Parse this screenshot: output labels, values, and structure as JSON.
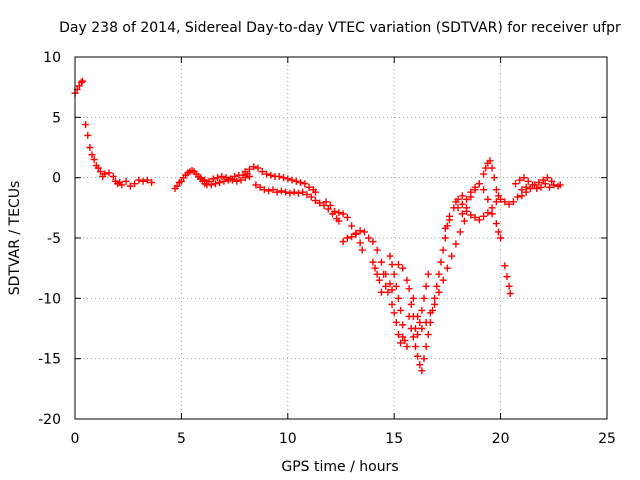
{
  "chart_data": {
    "type": "scatter",
    "title": "Day 238 of 2014, Sidereal Day-to-day VTEC variation (SDTVAR) for receiver ufpr",
    "xlabel": "GPS time / hours",
    "ylabel": "SDTVAR / TECUs",
    "xlim": [
      0,
      25
    ],
    "ylim": [
      -20,
      10
    ],
    "x_ticks": [
      0,
      5,
      10,
      15,
      20,
      25
    ],
    "y_ticks": [
      -20,
      -15,
      -10,
      -5,
      0,
      5,
      10
    ],
    "x_tick_labels": [
      "0",
      "5",
      "10",
      "15",
      "20",
      "25"
    ],
    "y_tick_labels": [
      "-20",
      "-15",
      "-10",
      "-5",
      "0",
      "5",
      "10"
    ],
    "grid": true,
    "marker": "+",
    "marker_color": "#ff0000",
    "series": [
      {
        "name": "SDTVAR",
        "color": "#ff0000",
        "points": [
          [
            0.0,
            7.0
          ],
          [
            0.1,
            7.3
          ],
          [
            0.2,
            7.6
          ],
          [
            0.3,
            7.9
          ],
          [
            0.35,
            8.0
          ],
          [
            0.5,
            4.4
          ],
          [
            0.6,
            3.5
          ],
          [
            0.7,
            2.5
          ],
          [
            0.8,
            1.9
          ],
          [
            0.9,
            1.5
          ],
          [
            1.0,
            1.0
          ],
          [
            1.1,
            0.8
          ],
          [
            1.2,
            0.5
          ],
          [
            1.3,
            0.1
          ],
          [
            1.4,
            0.3
          ],
          [
            1.6,
            0.4
          ],
          [
            1.8,
            0.1
          ],
          [
            1.9,
            -0.3
          ],
          [
            2.0,
            -0.5
          ],
          [
            2.1,
            -0.4
          ],
          [
            2.2,
            -0.6
          ],
          [
            2.4,
            -0.3
          ],
          [
            2.6,
            -0.7
          ],
          [
            2.8,
            -0.5
          ],
          [
            3.0,
            -0.2
          ],
          [
            3.2,
            -0.3
          ],
          [
            3.4,
            -0.2
          ],
          [
            3.6,
            -0.4
          ],
          [
            4.7,
            -0.9
          ],
          [
            4.8,
            -0.7
          ],
          [
            4.9,
            -0.4
          ],
          [
            5.0,
            -0.3
          ],
          [
            5.1,
            0.0
          ],
          [
            5.2,
            0.2
          ],
          [
            5.3,
            0.4
          ],
          [
            5.4,
            0.5
          ],
          [
            5.5,
            0.6
          ],
          [
            5.6,
            0.5
          ],
          [
            5.7,
            0.3
          ],
          [
            5.8,
            0.1
          ],
          [
            5.9,
            -0.1
          ],
          [
            6.0,
            -0.3
          ],
          [
            6.1,
            -0.5
          ],
          [
            6.2,
            -0.6
          ],
          [
            6.4,
            -0.6
          ],
          [
            6.6,
            -0.5
          ],
          [
            6.8,
            -0.4
          ],
          [
            7.0,
            -0.3
          ],
          [
            7.2,
            -0.2
          ],
          [
            7.4,
            -0.2
          ],
          [
            7.6,
            -0.3
          ],
          [
            7.8,
            -0.2
          ],
          [
            8.0,
            0.0
          ],
          [
            8.2,
            0.1
          ],
          [
            5.9,
            0.0
          ],
          [
            6.1,
            -0.2
          ],
          [
            6.3,
            -0.3
          ],
          [
            6.5,
            -0.1
          ],
          [
            6.7,
            0.0
          ],
          [
            6.9,
            0.1
          ],
          [
            7.1,
            0.0
          ],
          [
            7.3,
            -0.1
          ],
          [
            7.5,
            0.1
          ],
          [
            7.7,
            0.2
          ],
          [
            7.9,
            0.2
          ],
          [
            8.1,
            0.3
          ],
          [
            8.0,
            0.5
          ],
          [
            8.2,
            0.7
          ],
          [
            8.4,
            0.9
          ],
          [
            8.6,
            0.8
          ],
          [
            8.8,
            0.5
          ],
          [
            9.0,
            0.3
          ],
          [
            9.2,
            0.2
          ],
          [
            9.4,
            0.1
          ],
          [
            9.6,
            0.1
          ],
          [
            9.8,
            0.0
          ],
          [
            10.0,
            -0.1
          ],
          [
            10.2,
            -0.2
          ],
          [
            10.4,
            -0.3
          ],
          [
            10.6,
            -0.4
          ],
          [
            10.8,
            -0.5
          ],
          [
            11.0,
            -0.8
          ],
          [
            11.2,
            -1.0
          ],
          [
            11.3,
            -1.2
          ],
          [
            8.5,
            -0.6
          ],
          [
            8.7,
            -0.8
          ],
          [
            8.9,
            -1.0
          ],
          [
            9.1,
            -1.1
          ],
          [
            9.3,
            -1.0
          ],
          [
            9.5,
            -1.2
          ],
          [
            9.7,
            -1.1
          ],
          [
            9.9,
            -1.2
          ],
          [
            10.1,
            -1.3
          ],
          [
            10.3,
            -1.2
          ],
          [
            10.5,
            -1.3
          ],
          [
            10.7,
            -1.2
          ],
          [
            10.9,
            -1.4
          ],
          [
            11.1,
            -1.6
          ],
          [
            11.3,
            -1.9
          ],
          [
            11.5,
            -2.1
          ],
          [
            11.7,
            -2.3
          ],
          [
            11.9,
            -2.6
          ],
          [
            12.1,
            -3.0
          ],
          [
            12.3,
            -3.4
          ],
          [
            12.4,
            -3.6
          ],
          [
            11.8,
            -2.0
          ],
          [
            12.0,
            -2.3
          ],
          [
            12.2,
            -2.8
          ],
          [
            12.4,
            -2.9
          ],
          [
            12.6,
            -3.0
          ],
          [
            12.8,
            -3.3
          ],
          [
            13.0,
            -4.0
          ],
          [
            13.2,
            -4.7
          ],
          [
            13.4,
            -5.4
          ],
          [
            13.5,
            -6.0
          ],
          [
            12.6,
            -5.3
          ],
          [
            12.8,
            -5.0
          ],
          [
            13.0,
            -4.9
          ],
          [
            13.2,
            -4.6
          ],
          [
            13.4,
            -4.4
          ],
          [
            13.6,
            -4.5
          ],
          [
            13.8,
            -5.0
          ],
          [
            14.0,
            -5.3
          ],
          [
            14.2,
            -6.0
          ],
          [
            14.4,
            -7.0
          ],
          [
            14.5,
            -8.0
          ],
          [
            14.6,
            -9.0
          ],
          [
            14.7,
            -9.5
          ],
          [
            14.0,
            -7.0
          ],
          [
            14.1,
            -7.5
          ],
          [
            14.2,
            -8.0
          ],
          [
            14.3,
            -8.5
          ],
          [
            14.4,
            -9.5
          ],
          [
            14.6,
            -8.0
          ],
          [
            14.8,
            -8.8
          ],
          [
            14.9,
            -9.3
          ],
          [
            14.8,
            -6.5
          ],
          [
            14.9,
            -7.2
          ],
          [
            15.0,
            -8.0
          ],
          [
            15.1,
            -9.0
          ],
          [
            15.2,
            -10.0
          ],
          [
            15.3,
            -11.0
          ],
          [
            15.4,
            -12.2
          ],
          [
            15.5,
            -13.5
          ],
          [
            15.6,
            -14.0
          ],
          [
            14.9,
            -10.5
          ],
          [
            15.0,
            -11.2
          ],
          [
            15.1,
            -12.0
          ],
          [
            15.2,
            -13.0
          ],
          [
            15.3,
            -13.7
          ],
          [
            15.4,
            -13.2
          ],
          [
            15.2,
            -7.2
          ],
          [
            15.4,
            -7.5
          ],
          [
            15.6,
            -8.5
          ],
          [
            15.7,
            -9.2
          ],
          [
            15.8,
            -10.5
          ],
          [
            15.9,
            -11.5
          ],
          [
            16.0,
            -12.5
          ],
          [
            16.1,
            -13.0
          ],
          [
            16.2,
            -12.0
          ],
          [
            16.3,
            -11.0
          ],
          [
            16.4,
            -10.0
          ],
          [
            16.5,
            -9.0
          ],
          [
            16.6,
            -8.0
          ],
          [
            15.7,
            -11.5
          ],
          [
            15.8,
            -12.5
          ],
          [
            15.9,
            -13.2
          ],
          [
            16.0,
            -14.0
          ],
          [
            16.1,
            -14.8
          ],
          [
            16.2,
            -15.5
          ],
          [
            16.3,
            -16.0
          ],
          [
            16.4,
            -15.0
          ],
          [
            16.5,
            -14.0
          ],
          [
            16.6,
            -13.0
          ],
          [
            16.7,
            -12.0
          ],
          [
            16.8,
            -11.0
          ],
          [
            16.9,
            -10.0
          ],
          [
            17.0,
            -9.0
          ],
          [
            17.1,
            -8.0
          ],
          [
            17.2,
            -7.0
          ],
          [
            17.3,
            -6.0
          ],
          [
            17.4,
            -5.0
          ],
          [
            17.5,
            -4.0
          ],
          [
            17.6,
            -3.5
          ],
          [
            15.9,
            -10.0
          ],
          [
            16.1,
            -11.5
          ],
          [
            16.3,
            -12.5
          ],
          [
            16.5,
            -12.0
          ],
          [
            16.7,
            -11.2
          ],
          [
            16.9,
            -10.5
          ],
          [
            17.1,
            -9.5
          ],
          [
            17.3,
            -8.5
          ],
          [
            17.5,
            -7.5
          ],
          [
            17.7,
            -6.5
          ],
          [
            17.9,
            -5.5
          ],
          [
            18.1,
            -4.5
          ],
          [
            18.3,
            -3.6
          ],
          [
            17.4,
            -4.2
          ],
          [
            17.6,
            -3.2
          ],
          [
            17.8,
            -2.5
          ],
          [
            17.9,
            -2.0
          ],
          [
            18.0,
            -1.8
          ],
          [
            18.2,
            -2.2
          ],
          [
            18.4,
            -2.8
          ],
          [
            18.6,
            -3.1
          ],
          [
            18.8,
            -3.3
          ],
          [
            19.0,
            -3.5
          ],
          [
            19.2,
            -3.2
          ],
          [
            19.4,
            -2.9
          ],
          [
            19.6,
            -3.0
          ],
          [
            19.8,
            -3.8
          ],
          [
            19.9,
            -4.5
          ],
          [
            20.0,
            -5.0
          ],
          [
            18.0,
            -2.5
          ],
          [
            18.2,
            -1.5
          ],
          [
            18.4,
            -1.8
          ],
          [
            18.6,
            -1.6
          ],
          [
            18.8,
            -1.0
          ],
          [
            19.0,
            -0.5
          ],
          [
            19.2,
            0.3
          ],
          [
            19.3,
            0.8
          ],
          [
            19.4,
            1.2
          ],
          [
            19.5,
            1.4
          ],
          [
            19.6,
            0.8
          ],
          [
            19.7,
            0.0
          ],
          [
            19.8,
            -1.0
          ],
          [
            19.9,
            -1.5
          ],
          [
            18.2,
            -3.0
          ],
          [
            18.4,
            -2.5
          ],
          [
            18.6,
            -1.2
          ],
          [
            18.8,
            -0.8
          ],
          [
            19.0,
            -0.5
          ],
          [
            19.2,
            -1.0
          ],
          [
            19.4,
            -1.8
          ],
          [
            19.6,
            -2.5
          ],
          [
            19.8,
            -2.0
          ],
          [
            20.0,
            -1.8
          ],
          [
            20.2,
            -2.0
          ],
          [
            20.4,
            -2.2
          ],
          [
            20.6,
            -2.0
          ],
          [
            20.8,
            -1.6
          ],
          [
            21.0,
            -1.5
          ],
          [
            21.2,
            -1.2
          ],
          [
            20.2,
            -7.3
          ],
          [
            20.3,
            -8.2
          ],
          [
            20.4,
            -9.0
          ],
          [
            20.45,
            -9.6
          ],
          [
            20.7,
            -0.5
          ],
          [
            20.9,
            -0.2
          ],
          [
            21.1,
            0.0
          ],
          [
            21.3,
            -0.3
          ],
          [
            21.5,
            -0.6
          ],
          [
            21.7,
            -0.9
          ],
          [
            21.9,
            -0.8
          ],
          [
            22.1,
            -0.5
          ],
          [
            22.3,
            -0.8
          ],
          [
            22.5,
            -0.6
          ],
          [
            22.7,
            -0.7
          ],
          [
            22.8,
            -0.6
          ],
          [
            21.0,
            -1.0
          ],
          [
            21.2,
            -0.8
          ],
          [
            21.4,
            -0.9
          ],
          [
            21.6,
            -0.6
          ],
          [
            21.8,
            -0.4
          ],
          [
            22.0,
            -0.2
          ],
          [
            22.2,
            0.0
          ],
          [
            22.4,
            -0.3
          ]
        ]
      }
    ]
  }
}
